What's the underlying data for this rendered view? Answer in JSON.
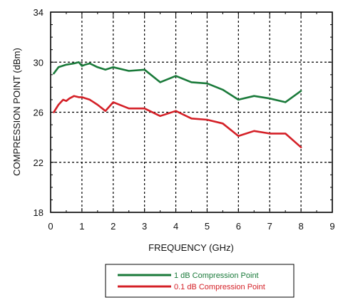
{
  "chart_data": {
    "type": "line",
    "xlabel": "FREQUENCY (GHz)",
    "ylabel": "COMPRESSION POINT (dBm)",
    "xlim": [
      0,
      9
    ],
    "ylim": [
      18,
      34
    ],
    "x_ticks": [
      "0",
      "1",
      "2",
      "3",
      "4",
      "5",
      "6",
      "7",
      "8",
      "9"
    ],
    "y_ticks": [
      "18",
      "22",
      "26",
      "30",
      "34"
    ],
    "grid": true,
    "legend_placement": "bottom-center, below plot",
    "series": [
      {
        "name": "1 dB Compression Point",
        "color": "#1a7a3a",
        "x": [
          0.1,
          0.25,
          0.5,
          0.75,
          0.9,
          1.0,
          1.1,
          1.25,
          1.5,
          1.75,
          2.0,
          2.5,
          3.0,
          3.5,
          4.0,
          4.5,
          5.0,
          5.5,
          6.0,
          6.5,
          7.0,
          7.5,
          8.0
        ],
        "values": [
          29.1,
          29.6,
          29.8,
          29.9,
          30.0,
          29.7,
          29.8,
          29.9,
          29.6,
          29.4,
          29.6,
          29.3,
          29.4,
          28.4,
          28.9,
          28.4,
          28.3,
          27.8,
          27.0,
          27.3,
          27.1,
          26.8,
          27.7
        ]
      },
      {
        "name": "0.1 dB Compression Point",
        "color": "#d42027",
        "x": [
          0.1,
          0.25,
          0.4,
          0.5,
          0.6,
          0.75,
          0.9,
          1.0,
          1.25,
          1.5,
          1.75,
          2.0,
          2.5,
          3.0,
          3.5,
          4.0,
          4.5,
          5.0,
          5.5,
          6.0,
          6.5,
          7.0,
          7.5,
          8.0
        ],
        "values": [
          26.0,
          26.6,
          27.0,
          26.9,
          27.1,
          27.3,
          27.2,
          27.2,
          27.0,
          26.6,
          26.1,
          26.8,
          26.3,
          26.3,
          25.7,
          26.1,
          25.5,
          25.4,
          25.1,
          24.1,
          24.5,
          24.3,
          24.3,
          23.2
        ]
      }
    ]
  }
}
